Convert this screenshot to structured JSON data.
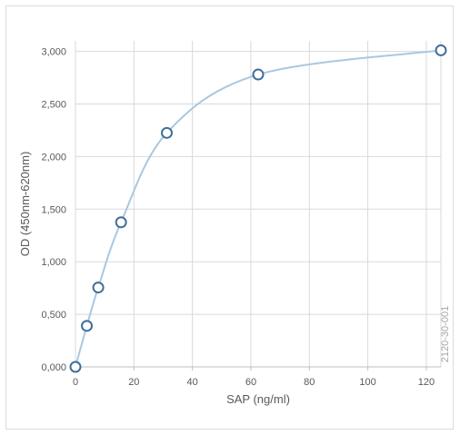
{
  "chart_data": {
    "type": "scatter",
    "title": "",
    "xlabel": "SAP (ng/ml)",
    "ylabel": "OD (450nm-620nm)",
    "xlim": [
      0,
      125
    ],
    "ylim": [
      0,
      3.1
    ],
    "x_ticks": [
      0,
      20,
      40,
      60,
      80,
      100,
      120
    ],
    "x_tick_labels": [
      "0",
      "20",
      "40",
      "60",
      "80",
      "100",
      "120"
    ],
    "y_ticks": [
      0,
      0.5,
      1.0,
      1.5,
      2.0,
      2.5,
      3.0
    ],
    "y_tick_labels": [
      "0,000",
      "0,500",
      "1,000",
      "1,500",
      "2,000",
      "2,500",
      "3,000"
    ],
    "grid": true,
    "legend": "none",
    "series": [
      {
        "x": [
          0,
          3.9,
          7.8,
          15.6,
          31.25,
          62.5,
          125
        ],
        "y": [
          0.0,
          0.39,
          0.755,
          1.375,
          2.225,
          2.78,
          3.01
        ],
        "marker": "circle-open",
        "line": "smooth"
      }
    ],
    "annotations": [
      {
        "text": "2120-30-001"
      }
    ],
    "colors": {
      "line": "#a9c8e0",
      "marker_stroke": "#3f6e9a",
      "marker_fill": "#ffffff",
      "grid": "#d9d9d9",
      "text": "#595959"
    }
  }
}
